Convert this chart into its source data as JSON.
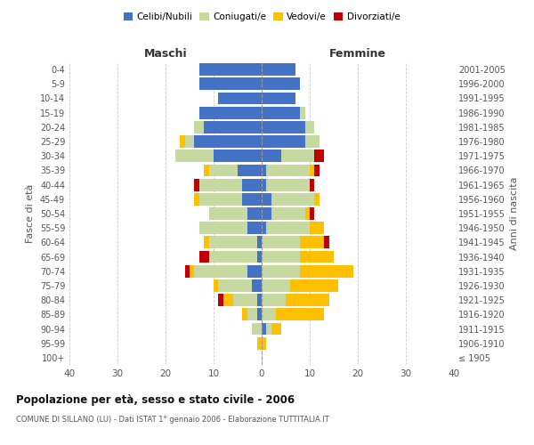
{
  "age_groups": [
    "100+",
    "95-99",
    "90-94",
    "85-89",
    "80-84",
    "75-79",
    "70-74",
    "65-69",
    "60-64",
    "55-59",
    "50-54",
    "45-49",
    "40-44",
    "35-39",
    "30-34",
    "25-29",
    "20-24",
    "15-19",
    "10-14",
    "5-9",
    "0-4"
  ],
  "birth_years": [
    "≤ 1905",
    "1906-1910",
    "1911-1915",
    "1916-1920",
    "1921-1925",
    "1926-1930",
    "1931-1935",
    "1936-1940",
    "1941-1945",
    "1946-1950",
    "1951-1955",
    "1956-1960",
    "1961-1965",
    "1966-1970",
    "1971-1975",
    "1976-1980",
    "1981-1985",
    "1986-1990",
    "1991-1995",
    "1996-2000",
    "2001-2005"
  ],
  "maschi": {
    "celibi": [
      0,
      0,
      0,
      1,
      1,
      2,
      3,
      1,
      1,
      3,
      3,
      4,
      4,
      5,
      10,
      14,
      12,
      13,
      9,
      13,
      13
    ],
    "coniugati": [
      0,
      0,
      2,
      2,
      5,
      7,
      11,
      10,
      10,
      10,
      8,
      9,
      9,
      6,
      8,
      2,
      2,
      0,
      0,
      0,
      0
    ],
    "vedovi": [
      0,
      1,
      0,
      1,
      2,
      1,
      1,
      0,
      1,
      0,
      0,
      1,
      0,
      1,
      0,
      1,
      0,
      0,
      0,
      0,
      0
    ],
    "divorziati": [
      0,
      0,
      0,
      0,
      1,
      0,
      1,
      2,
      0,
      0,
      0,
      0,
      1,
      0,
      0,
      0,
      0,
      0,
      0,
      0,
      0
    ]
  },
  "femmine": {
    "nubili": [
      0,
      0,
      1,
      0,
      0,
      0,
      0,
      0,
      0,
      1,
      2,
      2,
      1,
      1,
      4,
      9,
      9,
      8,
      7,
      8,
      7
    ],
    "coniugate": [
      0,
      0,
      1,
      3,
      5,
      6,
      8,
      8,
      8,
      9,
      7,
      9,
      9,
      9,
      7,
      3,
      2,
      1,
      0,
      0,
      0
    ],
    "vedove": [
      0,
      1,
      2,
      10,
      9,
      10,
      11,
      7,
      5,
      3,
      1,
      1,
      0,
      1,
      0,
      0,
      0,
      0,
      0,
      0,
      0
    ],
    "divorziate": [
      0,
      0,
      0,
      0,
      0,
      0,
      0,
      0,
      1,
      0,
      1,
      0,
      1,
      1,
      2,
      0,
      0,
      0,
      0,
      0,
      0
    ]
  },
  "colors": {
    "celibi_nubili": "#4472c4",
    "coniugati": "#c5d9a0",
    "vedovi": "#ffc000",
    "divorziati": "#c00000"
  },
  "xlim": [
    -40,
    40
  ],
  "xticks": [
    -40,
    -30,
    -20,
    -10,
    0,
    10,
    20,
    30,
    40
  ],
  "xticklabels": [
    "40",
    "30",
    "20",
    "10",
    "0",
    "10",
    "20",
    "30",
    "40"
  ],
  "title": "Popolazione per età, sesso e stato civile - 2006",
  "subtitle": "COMUNE DI SILLANO (LU) - Dati ISTAT 1° gennaio 2006 - Elaborazione TUTTITALIA.IT",
  "ylabel_left": "Fasce di età",
  "ylabel_right": "Anni di nascita",
  "maschi_label": "Maschi",
  "femmine_label": "Femmine",
  "legend_labels": [
    "Celibi/Nubili",
    "Coniugati/e",
    "Vedovi/e",
    "Divorziati/e"
  ],
  "background_color": "#ffffff",
  "grid_color": "#cccccc"
}
